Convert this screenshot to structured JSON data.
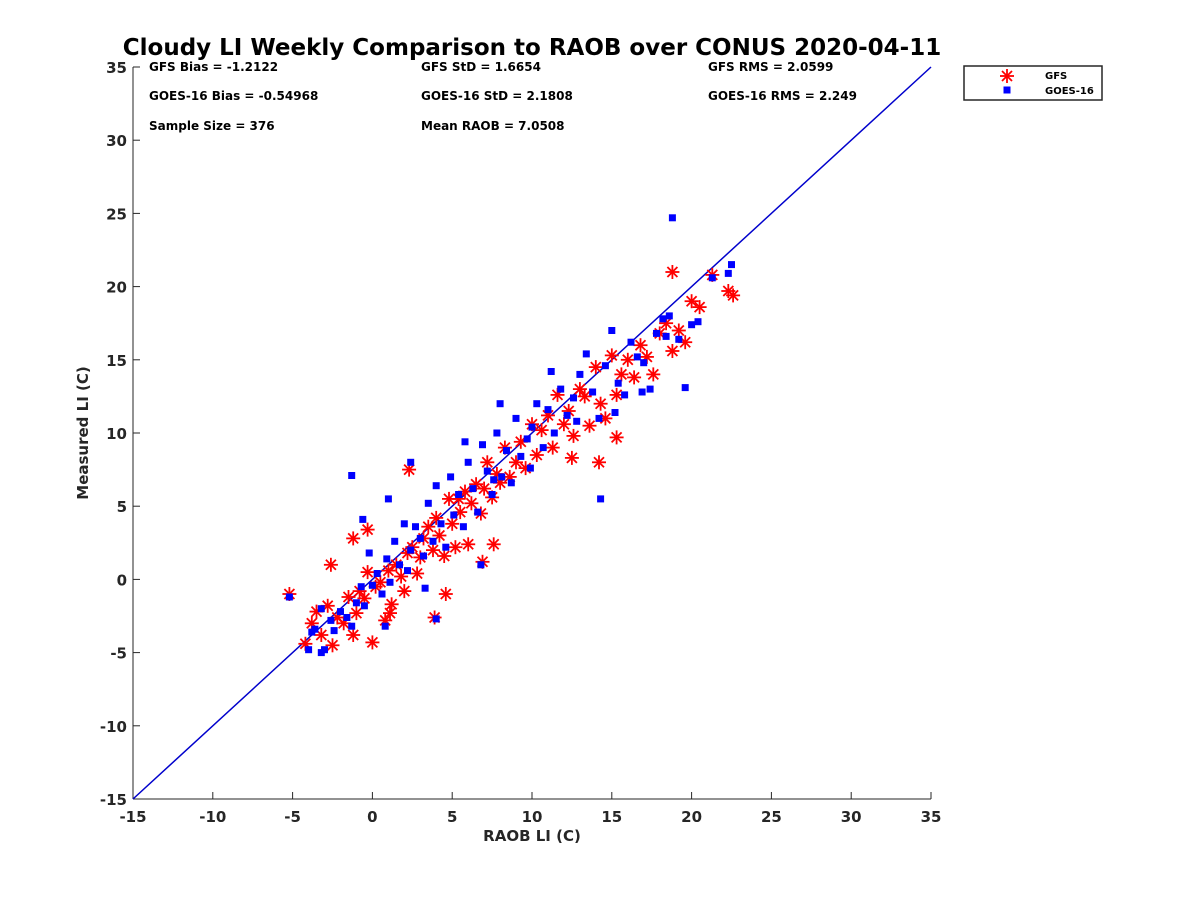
{
  "chart_data": {
    "type": "scatter",
    "title": "Cloudy LI Weekly Comparison to RAOB over CONUS 2020-04-11",
    "xlabel": "RAOB LI (C)",
    "ylabel": "Measured LI (C)",
    "xlim": [
      -15,
      35
    ],
    "ylim": [
      -15,
      35
    ],
    "xticks": [
      -15,
      -10,
      -5,
      0,
      5,
      10,
      15,
      20,
      25,
      30,
      35
    ],
    "yticks": [
      -15,
      -10,
      -5,
      0,
      5,
      10,
      15,
      20,
      25,
      30,
      35
    ],
    "xtick_labels": [
      "-15",
      "-10",
      "-5",
      "0",
      "5",
      "10",
      "15",
      "20",
      "25",
      "30",
      "35"
    ],
    "ytick_labels": [
      "-15",
      "-10",
      "-5",
      "0",
      "5",
      "10",
      "15",
      "20",
      "25",
      "30",
      "35"
    ],
    "grid": false,
    "legend_position": "top-right (outside plot)",
    "reference_line": {
      "type": "1:1",
      "from": [
        -15,
        -15
      ],
      "to": [
        35,
        35
      ],
      "color": "#0000cc"
    },
    "stats": [
      "GFS Bias = -1.2122",
      "GFS StD = 1.6654",
      "GFS RMS = 2.0599",
      "GOES-16 Bias = -0.54968",
      "GOES-16 StD = 2.1808",
      "GOES-16 RMS = 2.249",
      "Sample Size = 376",
      "Mean RAOB = 7.0508"
    ],
    "series": [
      {
        "name": "GFS",
        "marker": "asterisk",
        "color": "#ff0000",
        "x": [
          -5.2,
          -4.2,
          -3.8,
          -3.5,
          -3.2,
          -2.8,
          -2.5,
          -2.2,
          -1.8,
          -1.5,
          -1.2,
          -1.0,
          -0.8,
          -0.5,
          -0.3,
          0.0,
          0.2,
          0.5,
          0.8,
          1.0,
          1.2,
          1.5,
          1.8,
          2.0,
          2.2,
          2.5,
          2.8,
          3.0,
          3.2,
          3.5,
          3.8,
          4.0,
          4.2,
          4.5,
          4.8,
          5.0,
          5.2,
          5.5,
          5.8,
          6.0,
          6.2,
          6.5,
          6.8,
          7.0,
          7.2,
          7.5,
          7.8,
          8.0,
          8.3,
          8.6,
          9.0,
          9.3,
          9.6,
          10.0,
          10.3,
          10.6,
          11.0,
          11.3,
          11.6,
          12.0,
          12.3,
          12.6,
          13.0,
          13.3,
          13.6,
          14.0,
          14.3,
          14.6,
          15.0,
          15.3,
          15.6,
          16.0,
          16.4,
          16.8,
          17.2,
          17.6,
          18.0,
          18.4,
          18.8,
          19.2,
          19.6,
          20.0,
          20.5,
          21.3,
          22.3,
          22.6,
          -2.6,
          -1.2,
          2.3,
          3.9,
          4.6,
          5.4,
          6.9,
          7.6,
          12.5,
          14.2,
          15.3,
          18.8,
          -0.3,
          1.1
        ],
        "y": [
          -1.0,
          -4.4,
          -3.0,
          -2.2,
          -3.8,
          -1.8,
          -4.5,
          -2.6,
          -3.0,
          -1.2,
          -3.8,
          -2.3,
          -0.8,
          -1.3,
          0.5,
          -4.3,
          -0.5,
          -0.2,
          -2.8,
          0.6,
          -1.7,
          1.0,
          0.2,
          -0.8,
          1.8,
          2.2,
          0.4,
          1.5,
          2.8,
          3.6,
          2.0,
          4.2,
          3.0,
          1.6,
          5.5,
          3.8,
          2.2,
          4.6,
          6.0,
          2.4,
          5.2,
          6.5,
          4.5,
          6.2,
          8.0,
          5.6,
          7.2,
          6.6,
          9.0,
          7.0,
          8.0,
          9.4,
          7.6,
          10.6,
          8.5,
          10.2,
          11.2,
          9.0,
          12.6,
          10.6,
          11.5,
          9.8,
          13.0,
          12.5,
          10.5,
          14.5,
          12.0,
          11.0,
          15.3,
          12.6,
          14.0,
          15.0,
          13.8,
          16.0,
          15.2,
          14.0,
          16.8,
          17.5,
          15.6,
          17.0,
          16.2,
          19.0,
          18.6,
          20.8,
          19.7,
          19.4,
          1.0,
          2.8,
          7.5,
          -2.6,
          -1.0,
          5.5,
          1.2,
          2.4,
          8.3,
          8.0,
          9.7,
          21.0,
          3.4,
          -2.3
        ]
      },
      {
        "name": "GOES-16",
        "marker": "square",
        "color": "#0000ff",
        "x": [
          -5.2,
          -4.0,
          -3.6,
          -3.2,
          -3.0,
          -2.6,
          -2.4,
          -2.0,
          -1.6,
          -1.3,
          -1.0,
          -0.7,
          -0.5,
          -0.2,
          0.0,
          0.3,
          0.6,
          0.9,
          1.1,
          1.4,
          1.7,
          2.0,
          2.2,
          2.4,
          2.7,
          3.0,
          3.2,
          3.5,
          3.8,
          4.0,
          4.3,
          4.6,
          4.9,
          5.1,
          5.4,
          5.7,
          6.0,
          6.3,
          6.6,
          6.9,
          7.2,
          7.5,
          7.8,
          8.1,
          8.4,
          8.7,
          9.0,
          9.3,
          9.7,
          10.0,
          10.3,
          10.7,
          11.0,
          11.4,
          11.8,
          12.2,
          12.6,
          13.0,
          13.4,
          13.8,
          14.2,
          14.6,
          15.0,
          15.4,
          15.8,
          16.2,
          16.6,
          17.0,
          17.4,
          17.8,
          18.2,
          18.6,
          18.8,
          19.2,
          19.6,
          20.0,
          20.4,
          21.3,
          22.3,
          22.5,
          -1.3,
          -0.6,
          1.0,
          2.4,
          4.0,
          6.8,
          8.0,
          11.2,
          14.3,
          15.2,
          16.9,
          18.4,
          -3.8,
          -3.2,
          5.8,
          7.6,
          9.9,
          12.8,
          0.8,
          3.3
        ],
        "y": [
          -1.2,
          -4.8,
          -3.4,
          -2.0,
          -4.8,
          -2.8,
          -3.5,
          -2.2,
          -2.6,
          -3.2,
          -1.6,
          -0.5,
          -1.8,
          1.8,
          -0.4,
          0.4,
          -1.0,
          1.4,
          -0.2,
          2.6,
          1.0,
          3.8,
          0.6,
          2.0,
          3.6,
          2.8,
          1.6,
          5.2,
          2.6,
          6.4,
          3.8,
          2.2,
          7.0,
          4.4,
          5.8,
          3.6,
          8.0,
          6.2,
          4.6,
          9.2,
          7.4,
          5.8,
          10.0,
          7.0,
          8.8,
          6.6,
          11.0,
          8.4,
          9.6,
          10.4,
          12.0,
          9.0,
          11.6,
          10.0,
          13.0,
          11.2,
          12.4,
          14.0,
          15.4,
          12.8,
          11.0,
          14.6,
          17.0,
          13.4,
          12.6,
          16.2,
          15.2,
          14.8,
          13.0,
          16.8,
          17.8,
          18.0,
          24.7,
          16.4,
          13.1,
          17.4,
          17.6,
          20.6,
          20.9,
          21.5,
          7.1,
          4.1,
          5.5,
          8.0,
          -2.7,
          1.0,
          12.0,
          14.2,
          5.5,
          11.4,
          12.8,
          16.6,
          -3.6,
          -5.0,
          9.4,
          6.8,
          7.6,
          10.8,
          -3.2,
          -0.6
        ]
      }
    ]
  }
}
